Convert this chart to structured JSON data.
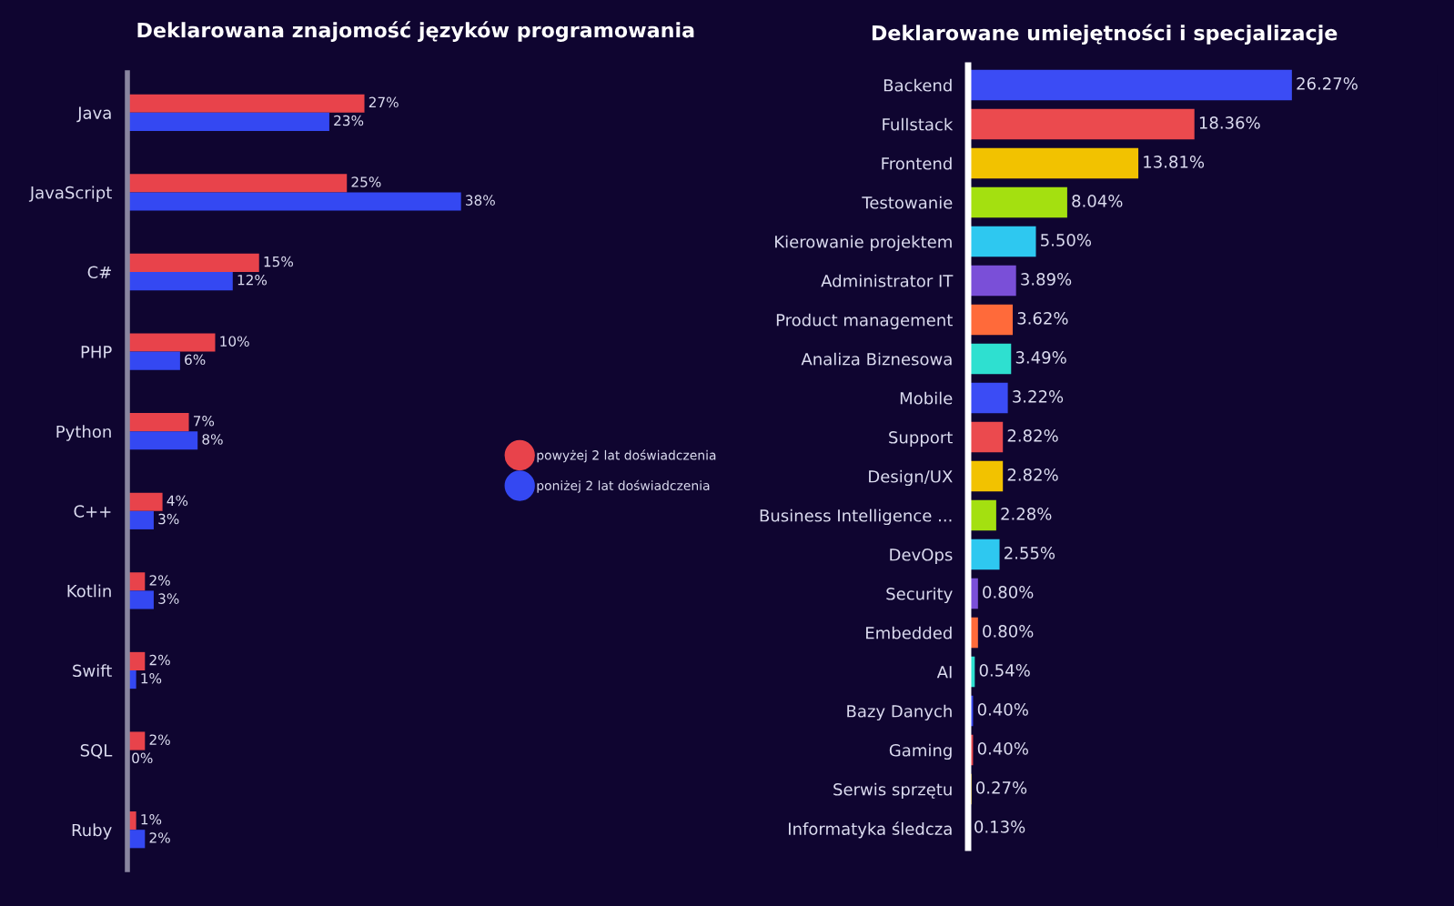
{
  "chart_data": [
    {
      "type": "bar",
      "orientation": "horizontal",
      "title": "Deklarowana znajomość języków programowania",
      "categories": [
        "Java",
        "JavaScript",
        "C#",
        "PHP",
        "Python",
        "C++",
        "Kotlin",
        "Swift",
        "SQL",
        "Ruby"
      ],
      "series": [
        {
          "name": "powyżej 2 lat doświadczenia",
          "color": "#e8434b",
          "values": [
            27,
            25,
            15,
            10,
            7,
            4,
            2,
            2,
            2,
            1
          ],
          "value_labels": [
            "27%",
            "25%",
            "15%",
            "10%",
            "7%",
            "4%",
            "2%",
            "2%",
            "2%",
            "1%"
          ]
        },
        {
          "name": "poniżej 2 lat doświadczenia",
          "color": "#3448f2",
          "values": [
            23,
            38,
            12,
            6,
            8,
            3,
            3,
            1,
            0,
            2
          ],
          "value_labels": [
            "23%",
            "38%",
            "12%",
            "6%",
            "8%",
            "3%",
            "3%",
            "1%",
            "0%",
            "2%"
          ]
        }
      ],
      "legend": "right",
      "marker": "circle"
    },
    {
      "type": "bar",
      "orientation": "horizontal",
      "title": "Deklarowane umiejętności i specjalizacje",
      "categories": [
        "Backend",
        "Fullstack",
        "Frontend",
        "Testowanie",
        "Kierowanie projektem",
        "Administrator IT",
        "Product management",
        "Analiza Biznesowa",
        "Mobile",
        "Support",
        "Design/UX",
        "Business Intelligence ...",
        "DevOps",
        "Security",
        "Embedded",
        "AI",
        "Bazy Danych",
        "Gaming",
        "Serwis sprzętu",
        "Informatyka śledcza"
      ],
      "values": [
        26.27,
        18.36,
        13.81,
        8.04,
        5.5,
        3.89,
        3.62,
        3.49,
        3.22,
        2.82,
        2.82,
        2.28,
        2.55,
        0.8,
        0.8,
        0.54,
        0.4,
        0.4,
        0.27,
        0.13
      ],
      "value_labels": [
        "26.27%",
        "18.36%",
        "13.81%",
        "8.04%",
        "5.50%",
        "3.89%",
        "3.62%",
        "3.49%",
        "3.22%",
        "2.82%",
        "2.82%",
        "2.28%",
        "2.55%",
        "0.80%",
        "0.80%",
        "0.54%",
        "0.40%",
        "0.40%",
        "0.27%",
        "0.13%"
      ],
      "colors": [
        "#3b4cf5",
        "#eb4a4e",
        "#f2c200",
        "#a4e010",
        "#2ec8f0",
        "#7a4fd8",
        "#ff6a3a",
        "#2ee0d0",
        "#3b4cf5",
        "#eb4a4e",
        "#f2c200",
        "#a4e010",
        "#2ec8f0",
        "#7a4fd8",
        "#ff6a3a",
        "#2ee0d0",
        "#3b4cf5",
        "#eb4a4e",
        "#f2c200",
        "#a4e010"
      ]
    }
  ]
}
